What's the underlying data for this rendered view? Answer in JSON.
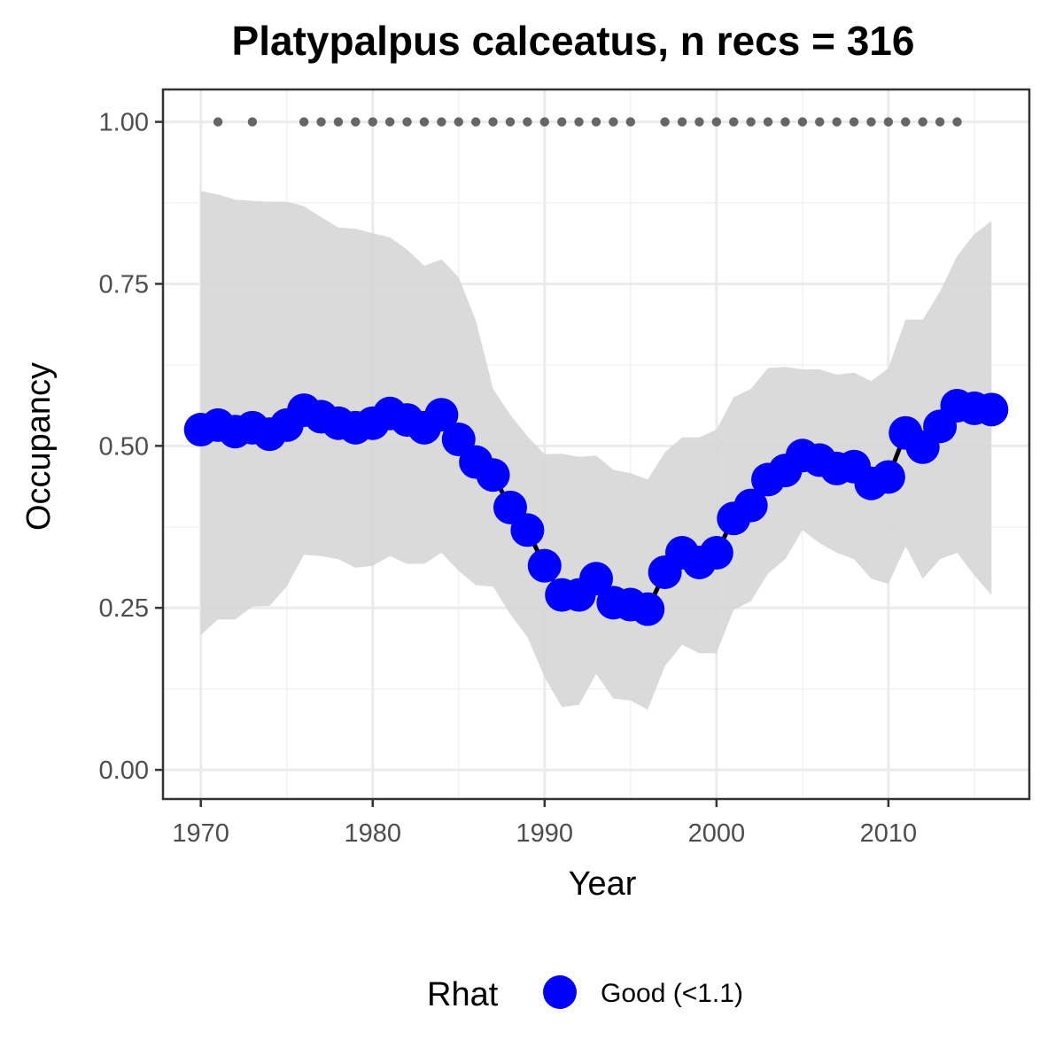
{
  "chart_data": {
    "type": "line",
    "title": "Platypalpus calceatus, n recs = 316",
    "xlabel": "Year",
    "ylabel": "Occupancy",
    "xlim": [
      1967.8,
      1918.2
    ],
    "ylim": [
      -0.045,
      1.05
    ],
    "x_ticks": [
      1970,
      1980,
      1990,
      2000,
      2010
    ],
    "x_tick_labels": [
      "1970",
      "1980",
      "1990",
      "2000",
      "2010"
    ],
    "y_ticks": [
      0,
      0.25,
      0.5,
      0.75,
      1
    ],
    "y_tick_labels": [
      "0.00",
      "0.25",
      "0.50",
      "0.75",
      "1.00"
    ],
    "grid": true,
    "colors": {
      "points": "#0000ff",
      "line": "#000000",
      "ribbon": "#d6d6d6",
      "record_dots": "#666666"
    },
    "series": [
      {
        "x": [
          1970,
          1971,
          1972,
          1973,
          1974,
          1975,
          1976,
          1977,
          1978,
          1979,
          1980,
          1981,
          1982,
          1983,
          1984,
          1985,
          1986,
          1987,
          1988,
          1989,
          1990,
          1991,
          1992,
          1993,
          1994,
          1995,
          1996,
          1997,
          1998,
          1999,
          2000,
          2001,
          2002,
          2003,
          2004,
          2005,
          2006,
          2007,
          2008,
          2009,
          2010,
          2011,
          2012,
          2013,
          2014,
          2015,
          2016
        ],
        "values": [
          0.525,
          0.532,
          0.522,
          0.528,
          0.518,
          0.532,
          0.555,
          0.545,
          0.535,
          0.528,
          0.535,
          0.55,
          0.54,
          0.528,
          0.548,
          0.51,
          0.475,
          0.455,
          0.405,
          0.37,
          0.315,
          0.27,
          0.27,
          0.295,
          0.258,
          0.255,
          0.248,
          0.305,
          0.335,
          0.32,
          0.335,
          0.388,
          0.408,
          0.448,
          0.462,
          0.485,
          0.478,
          0.465,
          0.468,
          0.442,
          0.452,
          0.52,
          0.498,
          0.53,
          0.562,
          0.558,
          0.556
        ],
        "upper": [
          0.893,
          0.888,
          0.88,
          0.878,
          0.877,
          0.877,
          0.87,
          0.853,
          0.837,
          0.835,
          0.828,
          0.822,
          0.803,
          0.778,
          0.788,
          0.76,
          0.693,
          0.588,
          0.548,
          0.515,
          0.487,
          0.488,
          0.483,
          0.485,
          0.463,
          0.458,
          0.448,
          0.49,
          0.513,
          0.513,
          0.525,
          0.575,
          0.588,
          0.62,
          0.622,
          0.618,
          0.618,
          0.61,
          0.613,
          0.6,
          0.62,
          0.695,
          0.695,
          0.738,
          0.793,
          0.827,
          0.847
        ],
        "lower": [
          0.208,
          0.232,
          0.232,
          0.252,
          0.253,
          0.283,
          0.332,
          0.33,
          0.325,
          0.312,
          0.315,
          0.33,
          0.318,
          0.318,
          0.335,
          0.307,
          0.285,
          0.283,
          0.24,
          0.205,
          0.143,
          0.097,
          0.1,
          0.148,
          0.11,
          0.107,
          0.093,
          0.16,
          0.193,
          0.18,
          0.18,
          0.247,
          0.26,
          0.303,
          0.325,
          0.37,
          0.35,
          0.335,
          0.325,
          0.295,
          0.287,
          0.345,
          0.295,
          0.325,
          0.335,
          0.3,
          0.27
        ]
      }
    ],
    "record_years": [
      1971,
      1973,
      1976,
      1977,
      1978,
      1979,
      1980,
      1981,
      1982,
      1983,
      1984,
      1985,
      1986,
      1987,
      1988,
      1989,
      1990,
      1991,
      1992,
      1993,
      1994,
      1995,
      1997,
      1998,
      1999,
      2000,
      2001,
      2002,
      2003,
      2004,
      2005,
      2006,
      2007,
      2008,
      2009,
      2010,
      2011,
      2012,
      2013,
      2014
    ],
    "record_value": 1.0,
    "legend": {
      "title": "Rhat",
      "entries": [
        "Good (<1.1)"
      ],
      "placement": "bottom"
    }
  }
}
